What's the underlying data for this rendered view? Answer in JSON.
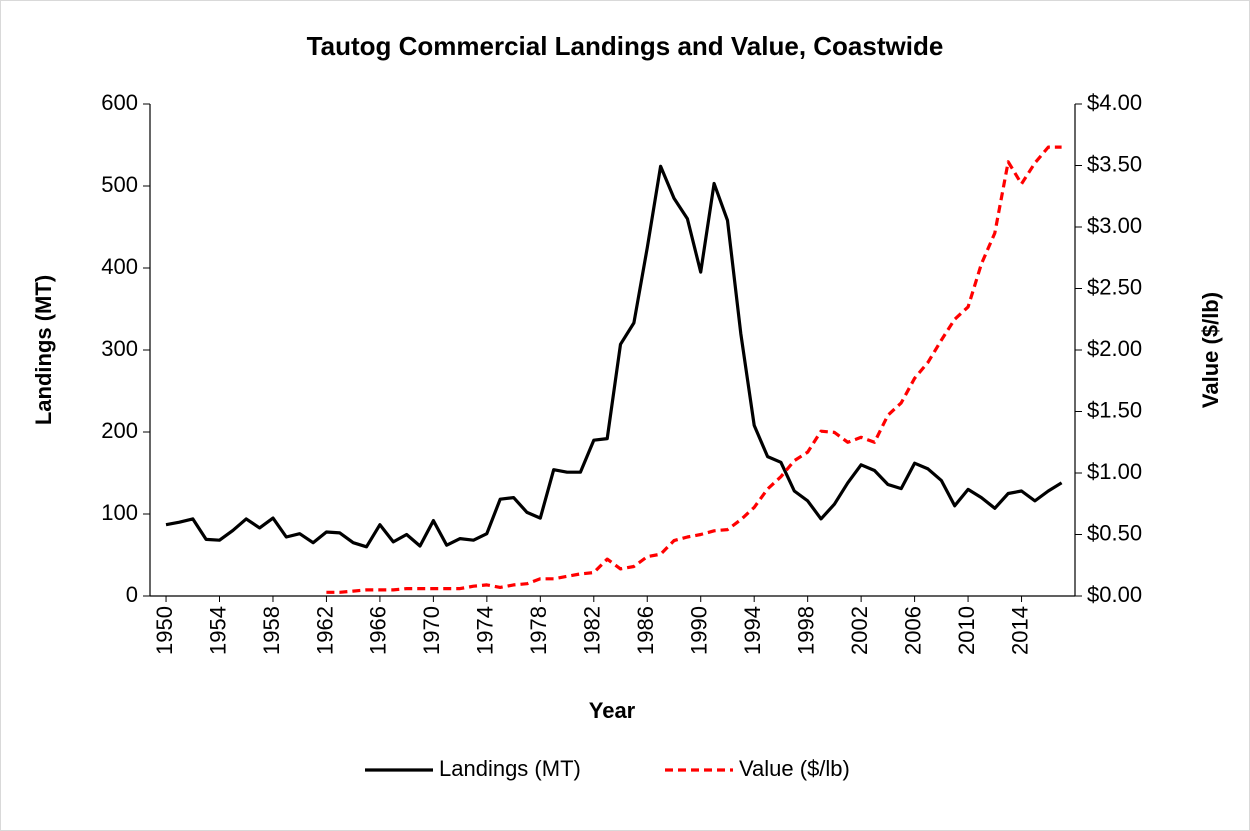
{
  "chart_data": {
    "type": "line",
    "title": "Tautog Commercial Landings and Value, Coastwide",
    "x_label": "Year",
    "y_label": "Landings (MT)",
    "y2_label": "Value ($/lb)",
    "x": [
      1950,
      1951,
      1952,
      1953,
      1954,
      1955,
      1956,
      1957,
      1958,
      1959,
      1960,
      1961,
      1962,
      1963,
      1964,
      1965,
      1966,
      1967,
      1968,
      1969,
      1970,
      1971,
      1972,
      1973,
      1974,
      1975,
      1976,
      1977,
      1978,
      1979,
      1980,
      1981,
      1982,
      1983,
      1984,
      1985,
      1986,
      1987,
      1988,
      1989,
      1990,
      1991,
      1992,
      1993,
      1994,
      1995,
      1996,
      1997,
      1998,
      1999,
      2000,
      2001,
      2002,
      2003,
      2004,
      2005,
      2006,
      2007,
      2008,
      2009,
      2010,
      2011,
      2012,
      2013,
      2014,
      2015,
      2016,
      2017
    ],
    "series": [
      {
        "name": "Landings (MT)",
        "color": "#000000",
        "dash": false,
        "values": [
          87,
          90,
          94,
          69,
          68,
          80,
          94,
          83,
          95,
          72,
          76,
          65,
          78,
          77,
          65,
          60,
          87,
          66,
          75,
          61,
          92,
          62,
          70,
          68,
          76,
          118,
          120,
          102,
          95,
          154,
          151,
          151,
          190,
          192,
          307,
          333,
          425,
          524,
          485,
          460,
          395,
          503,
          458,
          320,
          208,
          170,
          163,
          128,
          116,
          94,
          112,
          138,
          160,
          153,
          136,
          131,
          162,
          155,
          141,
          110,
          130,
          120,
          107,
          125,
          128,
          116,
          128,
          138
        ]
      },
      {
        "name": "Value ($/lb)",
        "color": "#ff0000",
        "dash": true,
        "axis": "y2",
        "values": [
          null,
          null,
          null,
          null,
          null,
          null,
          null,
          null,
          null,
          null,
          null,
          null,
          0.03,
          0.03,
          0.04,
          0.05,
          0.05,
          0.05,
          0.06,
          0.06,
          0.06,
          0.06,
          0.06,
          0.08,
          0.09,
          0.07,
          0.09,
          0.1,
          0.14,
          0.14,
          0.16,
          0.18,
          0.19,
          0.3,
          0.22,
          0.24,
          0.32,
          0.34,
          0.45,
          0.48,
          0.5,
          0.53,
          0.54,
          0.62,
          0.72,
          0.87,
          0.97,
          1.1,
          1.17,
          1.34,
          1.33,
          1.25,
          1.29,
          1.25,
          1.47,
          1.57,
          1.77,
          1.9,
          2.08,
          2.25,
          2.35,
          2.7,
          2.95,
          3.53,
          3.35,
          3.52,
          3.65,
          3.65
        ]
      }
    ],
    "xlim": [
      1948.8,
      2018
    ],
    "xticks": [
      1950,
      1954,
      1958,
      1962,
      1966,
      1970,
      1974,
      1978,
      1982,
      1986,
      1990,
      1994,
      1998,
      2002,
      2006,
      2010,
      2014
    ],
    "ylim": [
      0,
      600
    ],
    "yticks": [
      0,
      100,
      200,
      300,
      400,
      500,
      600
    ],
    "y2lim": [
      0,
      4
    ],
    "y2ticks": [
      {
        "value": 0,
        "label": "$0.00"
      },
      {
        "value": 0.5,
        "label": "$0.50"
      },
      {
        "value": 1,
        "label": "$1.00"
      },
      {
        "value": 1.5,
        "label": "$1.50"
      },
      {
        "value": 2,
        "label": "$2.00"
      },
      {
        "value": 2.5,
        "label": "$2.50"
      },
      {
        "value": 3,
        "label": "$3.00"
      },
      {
        "value": 3.5,
        "label": "$3.50"
      },
      {
        "value": 4,
        "label": "$4.00"
      }
    ],
    "legend": "bottom"
  }
}
